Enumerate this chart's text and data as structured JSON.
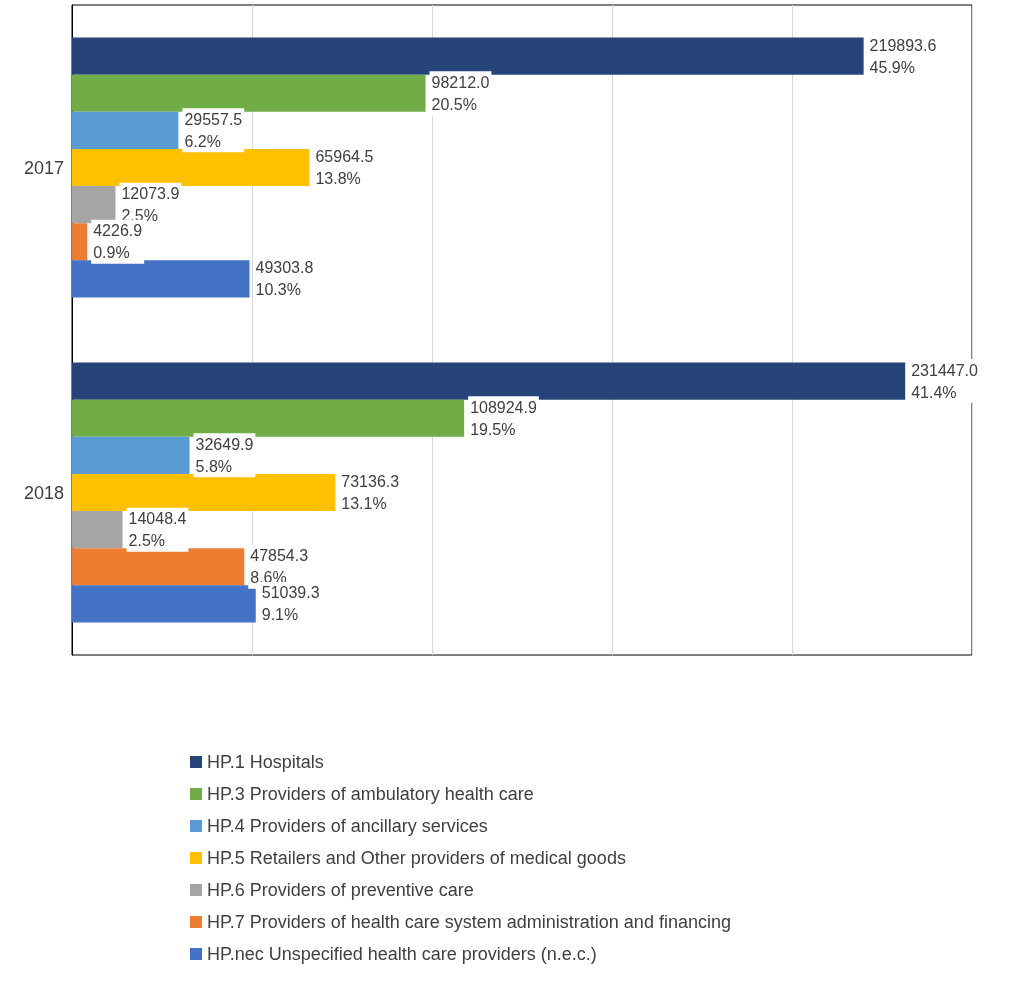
{
  "chart_data": {
    "type": "bar",
    "orientation": "horizontal",
    "categories": [
      "2017",
      "2018"
    ],
    "series": [
      {
        "name": "HP.1 Hospitals",
        "color": "#264478",
        "values": [
          219893.6,
          231447.0
        ],
        "value_labels": [
          "219893.6\n45.9%",
          "231447.0\n41.4%"
        ]
      },
      {
        "name": "HP.3 Providers of ambulatory health care",
        "color": "#70ad47",
        "values": [
          98212.0,
          108924.9
        ],
        "value_labels": [
          "98212.0\n20.5%",
          "108924.9\n19.5%"
        ]
      },
      {
        "name": "HP.4 Providers of ancillary services",
        "color": "#5b9bd5",
        "values": [
          29557.5,
          32649.9
        ],
        "value_labels": [
          "29557.5\n6.2%",
          "32649.9\n5.8%"
        ]
      },
      {
        "name": "HP.5 Retailers and Other providers of medical goods",
        "color": "#ffc000",
        "values": [
          65964.5,
          73136.3
        ],
        "value_labels": [
          "65964.5\n13.8%",
          "73136.3\n13.1%"
        ]
      },
      {
        "name": "HP.6 Providers of preventive care",
        "color": "#a5a5a5",
        "values": [
          12073.9,
          14048.4
        ],
        "value_labels": [
          "12073.9\n2.5%",
          "14048.4\n2.5%"
        ]
      },
      {
        "name": "HP.7 Providers of health care system administration and financing",
        "color": "#ed7d31",
        "values": [
          4226.9,
          47854.3
        ],
        "value_labels": [
          "4226.9\n0.9%",
          "47854.3\n8.6%"
        ]
      },
      {
        "name": "HP.nec Unspecified health care providers (n.e.c.)",
        "color": "#4472c4",
        "values": [
          49303.8,
          51039.3
        ],
        "value_labels": [
          "49303.8\n10.3%",
          "51039.3\n9.1%"
        ]
      }
    ],
    "xlim": [
      0,
      250000
    ],
    "xticks": [
      {
        "value": 0,
        "label": null
      },
      {
        "value": 50000,
        "label": null
      },
      {
        "value": 100000,
        "label": null
      },
      {
        "value": 150000,
        "label": null
      },
      {
        "value": 200000,
        "label": null
      },
      {
        "value": 250000,
        "label": null
      }
    ],
    "grid": "x",
    "legend": "bottom",
    "tick_labels": "y"
  }
}
